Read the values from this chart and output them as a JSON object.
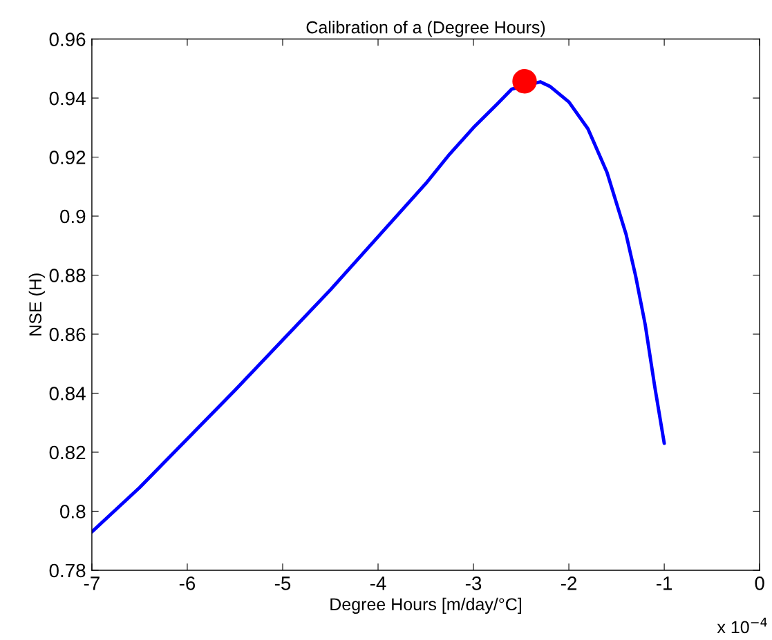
{
  "chart_data": {
    "type": "line",
    "title": "Calibration of a (Degree Hours)",
    "xlabel": "Degree Hours [m/day/°C]",
    "ylabel": "NSE (H)",
    "xlim": [
      -7,
      0
    ],
    "xticks": [
      -7,
      -6,
      -5,
      -4,
      -3,
      -2,
      -1,
      0
    ],
    "ylim": [
      0.78,
      0.96
    ],
    "yticks": [
      0.78,
      0.8,
      0.82,
      0.84,
      0.86,
      0.88,
      0.9,
      0.92,
      0.94,
      0.96
    ],
    "grid": false,
    "legend": false,
    "marker": "none",
    "line_style": "solid",
    "annotations": [
      "x 10$^{−4}$"
    ],
    "series": [
      {
        "color": "#0000ff",
        "x": [
          -7,
          -6.5,
          -6,
          -5.5,
          -5,
          -4.5,
          -4,
          -3.75,
          -3.5,
          -3.25,
          -3,
          -2.75,
          -2.6,
          -2.3,
          -2.2,
          -2,
          -1.8,
          -1.6,
          -1.4,
          -1.3,
          -1.2,
          -1.1,
          -1.0
        ],
        "values": [
          0.793,
          0.808,
          0.8245,
          0.841,
          0.858,
          0.875,
          0.893,
          0.902,
          0.911,
          0.921,
          0.93,
          0.938,
          0.943,
          0.9455,
          0.944,
          0.9387,
          0.9296,
          0.9148,
          0.8938,
          0.8797,
          0.8633,
          0.8423,
          0.823
        ]
      },
      {
        "type": "scatter",
        "color": "#ff0000",
        "marker": "circle",
        "x": [
          -2.464
        ],
        "values": [
          0.9457
        ]
      }
    ]
  }
}
